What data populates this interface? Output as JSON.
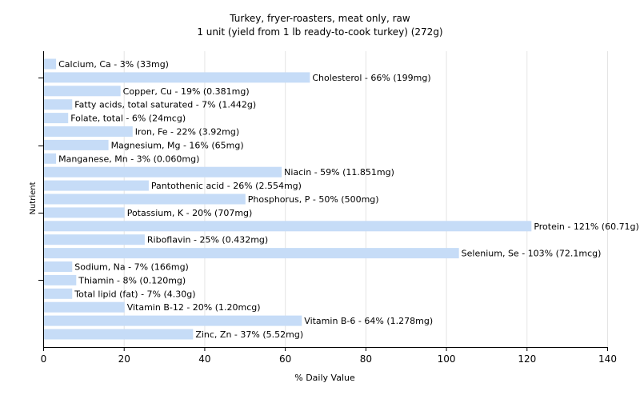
{
  "chart_data": {
    "type": "bar",
    "orientation": "horizontal",
    "title": "Turkey, fryer-roasters, meat only, raw",
    "subtitle": "1 unit (yield from 1 lb ready-to-cook turkey) (272g)",
    "xlabel": "% Daily Value",
    "ylabel": "Nutrient",
    "xlim": [
      0,
      140
    ],
    "xticks": [
      0,
      20,
      40,
      60,
      80,
      100,
      120,
      140
    ],
    "grid": true,
    "bar_color": "#c6dcf7",
    "categories": [
      "Calcium, Ca",
      "Cholesterol",
      "Copper, Cu",
      "Fatty acids, total saturated",
      "Folate, total",
      "Iron, Fe",
      "Magnesium, Mg",
      "Manganese, Mn",
      "Niacin",
      "Pantothenic acid",
      "Phosphorus, P",
      "Potassium, K",
      "Protein",
      "Riboflavin",
      "Selenium, Se",
      "Sodium, Na",
      "Thiamin",
      "Total lipid (fat)",
      "Vitamin B-12",
      "Vitamin B-6",
      "Zinc, Zn"
    ],
    "values": [
      3,
      66,
      19,
      7,
      6,
      22,
      16,
      3,
      59,
      26,
      50,
      20,
      121,
      25,
      103,
      7,
      8,
      7,
      20,
      64,
      37
    ],
    "labels": [
      "Calcium, Ca - 3% (33mg)",
      "Cholesterol - 66% (199mg)",
      "Copper, Cu - 19% (0.381mg)",
      "Fatty acids, total saturated - 7% (1.442g)",
      "Folate, total - 6% (24mcg)",
      "Iron, Fe - 22% (3.92mg)",
      "Magnesium, Mg - 16% (65mg)",
      "Manganese, Mn - 3% (0.060mg)",
      "Niacin - 59% (11.851mg)",
      "Pantothenic acid - 26% (2.554mg)",
      "Phosphorus, P - 50% (500mg)",
      "Potassium, K - 20% (707mg)",
      "Protein - 121% (60.71g)",
      "Riboflavin - 25% (0.432mg)",
      "Selenium, Se - 103% (72.1mcg)",
      "Sodium, Na - 7% (166mg)",
      "Thiamin - 8% (0.120mg)",
      "Total lipid (fat) - 7% (4.30g)",
      "Vitamin B-12 - 20% (1.20mcg)",
      "Vitamin B-6 - 64% (1.278mg)",
      "Zinc, Zn - 37% (5.52mg)"
    ]
  }
}
